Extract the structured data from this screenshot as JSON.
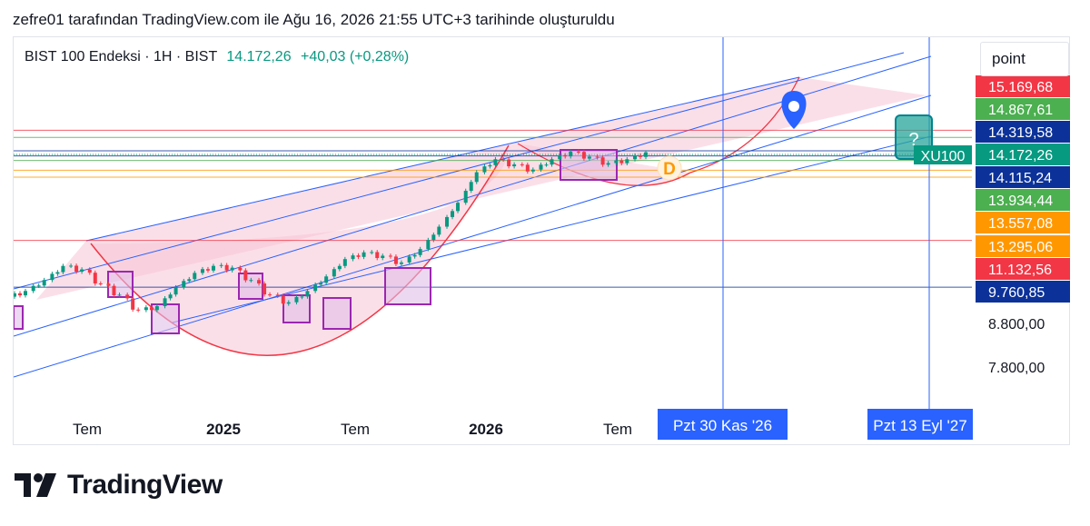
{
  "header": {
    "caption": "zefre01 tarafından TradingView.com ile Ağu 16, 2026 21:55 UTC+3 tarihinde oluşturuldu"
  },
  "legend": {
    "symbol": "BIST 100 Endeksi · 1H · BIST",
    "price": "14.172,26",
    "change": "+40,03 (+0,28%)"
  },
  "unit_label": "point",
  "brand": {
    "name": "TradingView"
  },
  "colors": {
    "up": "#089981",
    "down": "#f23645",
    "channel": "#2962ff",
    "fill": "#f7c5d6",
    "box": "#9c27b0",
    "vline": "#2962ff"
  },
  "chart_data": {
    "type": "candlestick",
    "symbol": "XU100",
    "x_axis_labels": [
      "Tem",
      "2025",
      "Tem",
      "2026",
      "Tem"
    ],
    "date_markers": [
      "Pzt 30 Kas '26",
      "Pzt 13 Eyl '27"
    ],
    "price_labels": [
      {
        "value": 15169.68,
        "text": "15.169,68",
        "color": "#f23645"
      },
      {
        "value": 14867.61,
        "text": "14.867,61",
        "color": "#4caf50"
      },
      {
        "value": 14319.58,
        "text": "14.319,58",
        "color": "#0c3299"
      },
      {
        "value": 14172.26,
        "text": "14.172,26",
        "color": "#089981",
        "tag": "XU100"
      },
      {
        "value": 14115.24,
        "text": "14.115,24",
        "color": "#0c3299"
      },
      {
        "value": 13934.44,
        "text": "13.934,44",
        "color": "#4caf50"
      },
      {
        "value": 13557.08,
        "text": "13.557,08",
        "color": "#ff9800"
      },
      {
        "value": 13295.06,
        "text": "13.295,06",
        "color": "#ff9800"
      },
      {
        "value": 11132.56,
        "text": "11.132,56",
        "color": "#f23645"
      },
      {
        "value": 9760.85,
        "text": "9.760,85",
        "color": "#0c3299"
      }
    ],
    "axis_ticks": [
      "8.800,00",
      "7.800,00"
    ],
    "annotations": {
      "d_label": "D",
      "question_label": "?"
    },
    "approx_closes": [
      9600,
      9900,
      10300,
      10200,
      9800,
      9500,
      9100,
      9200,
      9700,
      10100,
      10300,
      10250,
      9900,
      9500,
      9300,
      9600,
      10000,
      10500,
      10700,
      10600,
      10400,
      10800,
      11500,
      12300,
      13400,
      13900,
      13700,
      13500,
      13900,
      14200,
      14000,
      13750,
      13900,
      14172
    ]
  }
}
